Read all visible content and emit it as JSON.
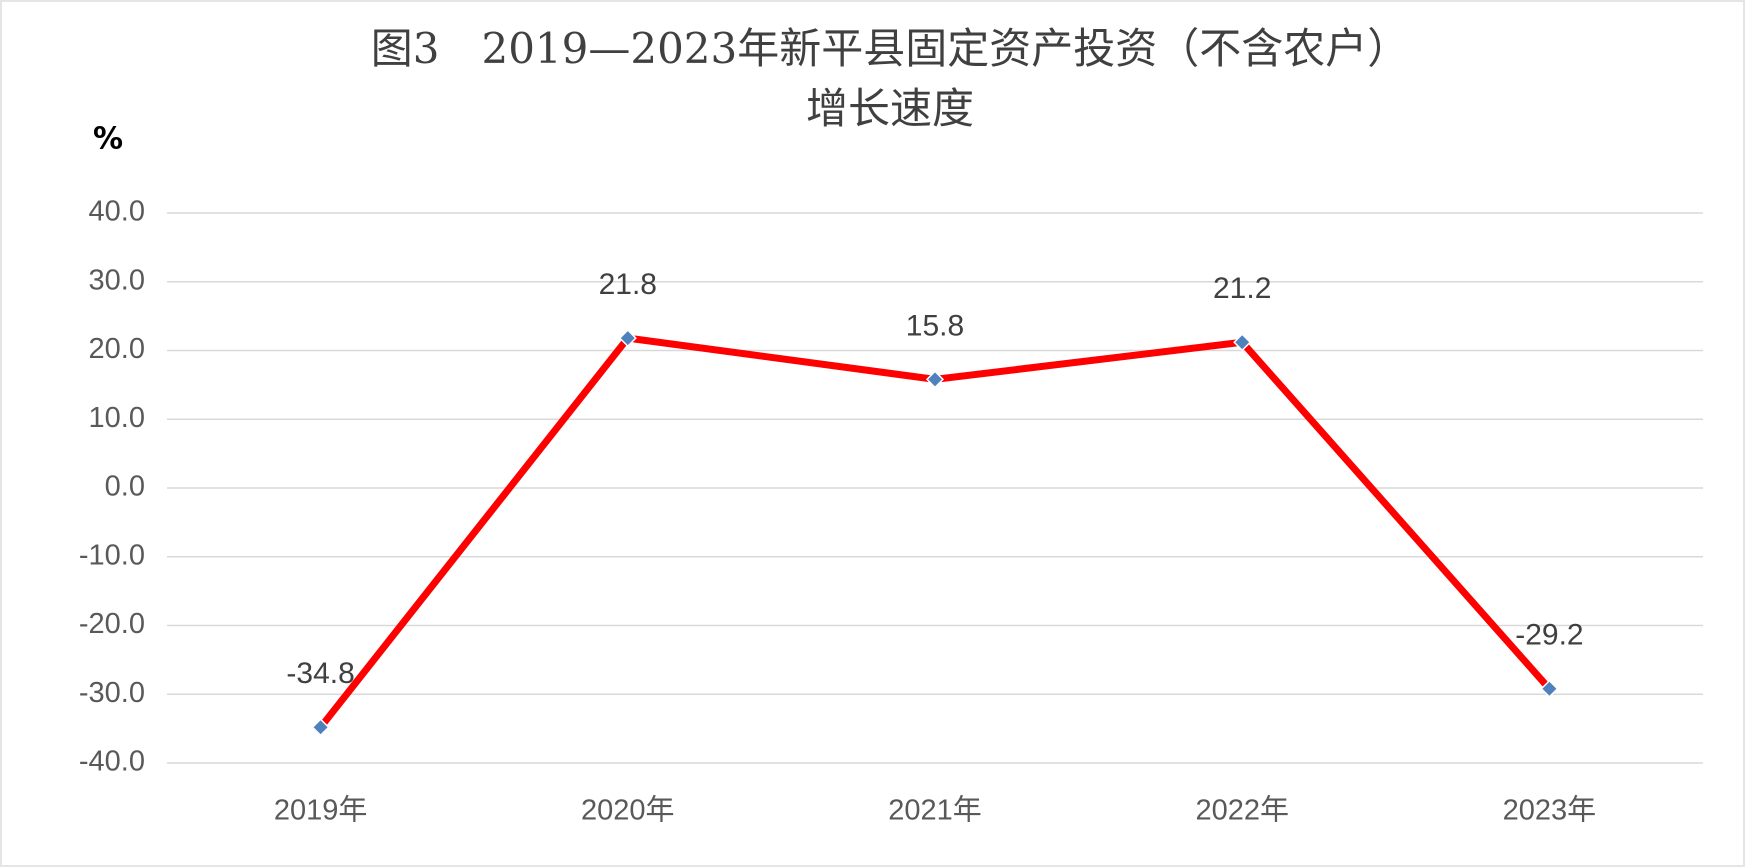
{
  "chart_data": {
    "type": "line",
    "title": [
      "图3　2019—2023年新平县固定资产投资（不含农户）",
      "增长速度"
    ],
    "y_label": "%",
    "categories": [
      "2019年",
      "2020年",
      "2021年",
      "2022年",
      "2023年"
    ],
    "series": [
      {
        "name": "增长速度",
        "color": "#ff0000",
        "marker_color": "#4f81bd",
        "values": [
          -34.8,
          21.8,
          15.8,
          21.2,
          -29.2
        ]
      }
    ],
    "ylim": [
      -40,
      40
    ],
    "yticks": [
      {
        "value": -40,
        "label": "-40.0"
      },
      {
        "value": -30,
        "label": "-30.0"
      },
      {
        "value": -20,
        "label": "-20.0"
      },
      {
        "value": -10,
        "label": "-10.0"
      },
      {
        "value": 0,
        "label": "0.0"
      },
      {
        "value": 10,
        "label": "10.0"
      },
      {
        "value": 20,
        "label": "20.0"
      },
      {
        "value": 30,
        "label": "30.0"
      },
      {
        "value": 40,
        "label": "40.0"
      }
    ],
    "grid": true,
    "data_labels": true
  }
}
